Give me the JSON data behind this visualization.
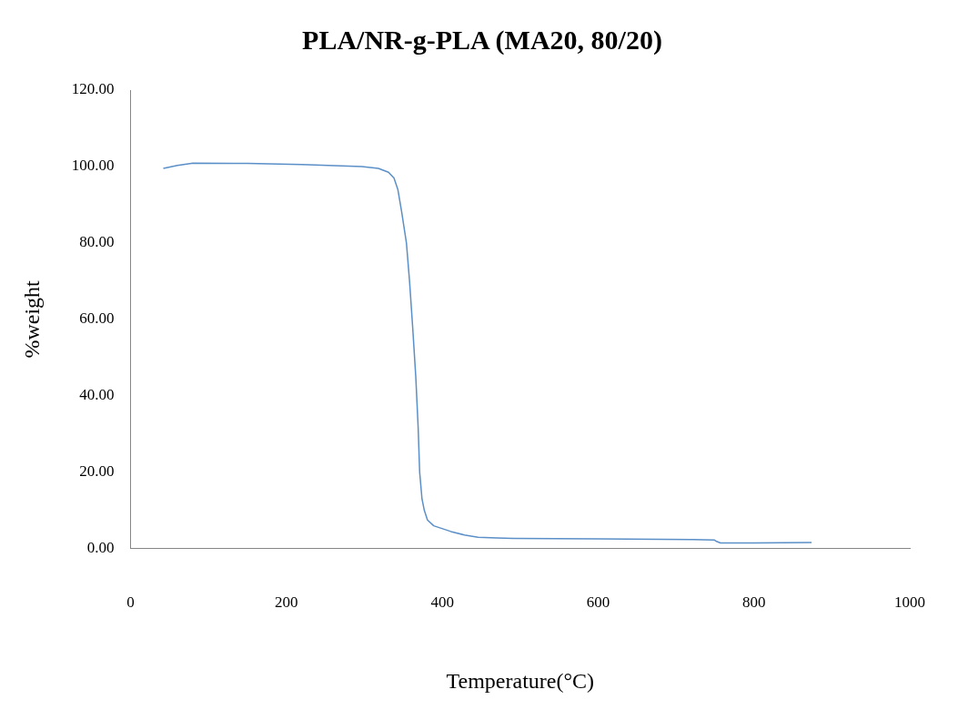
{
  "chart_data": {
    "type": "line",
    "title": "PLA/NR-g-PLA (MA20, 80/20)",
    "xlabel": "Temperature(°C)",
    "ylabel": "%weight",
    "x": [
      42,
      60,
      80,
      150,
      220,
      297,
      318,
      331,
      338,
      343,
      348,
      354,
      358,
      362,
      366,
      369,
      371,
      374,
      377,
      381,
      389,
      411,
      430,
      446,
      470,
      491,
      600,
      720,
      749,
      752,
      757,
      800,
      874
    ],
    "series": [
      {
        "color": "#5b8fc7",
        "values": [
          99.5,
          100.3,
          100.9,
          100.8,
          100.5,
          100,
          99.5,
          98.5,
          97,
          94,
          88,
          80,
          70,
          58,
          45,
          32,
          20,
          13,
          10,
          7.5,
          6,
          4.5,
          3.5,
          3,
          2.8,
          2.7,
          2.6,
          2.4,
          2.3,
          1.9,
          1.5,
          1.5,
          1.6
        ]
      }
    ],
    "xlim": [
      0,
      1000
    ],
    "xticks": [
      0,
      200,
      400,
      600,
      800,
      1000
    ],
    "ylim": [
      0,
      120
    ],
    "yticks": [
      {
        "value": 0,
        "label": "0.00"
      },
      {
        "value": 20,
        "label": "20.00"
      },
      {
        "value": 40,
        "label": "40.00"
      },
      {
        "value": 60,
        "label": "60.00"
      },
      {
        "value": 80,
        "label": "80.00"
      },
      {
        "value": 100,
        "label": "100.00"
      },
      {
        "value": 120,
        "label": "120.00"
      }
    ],
    "grid": false,
    "legend": false,
    "marker": "none",
    "line_style": "solid"
  }
}
